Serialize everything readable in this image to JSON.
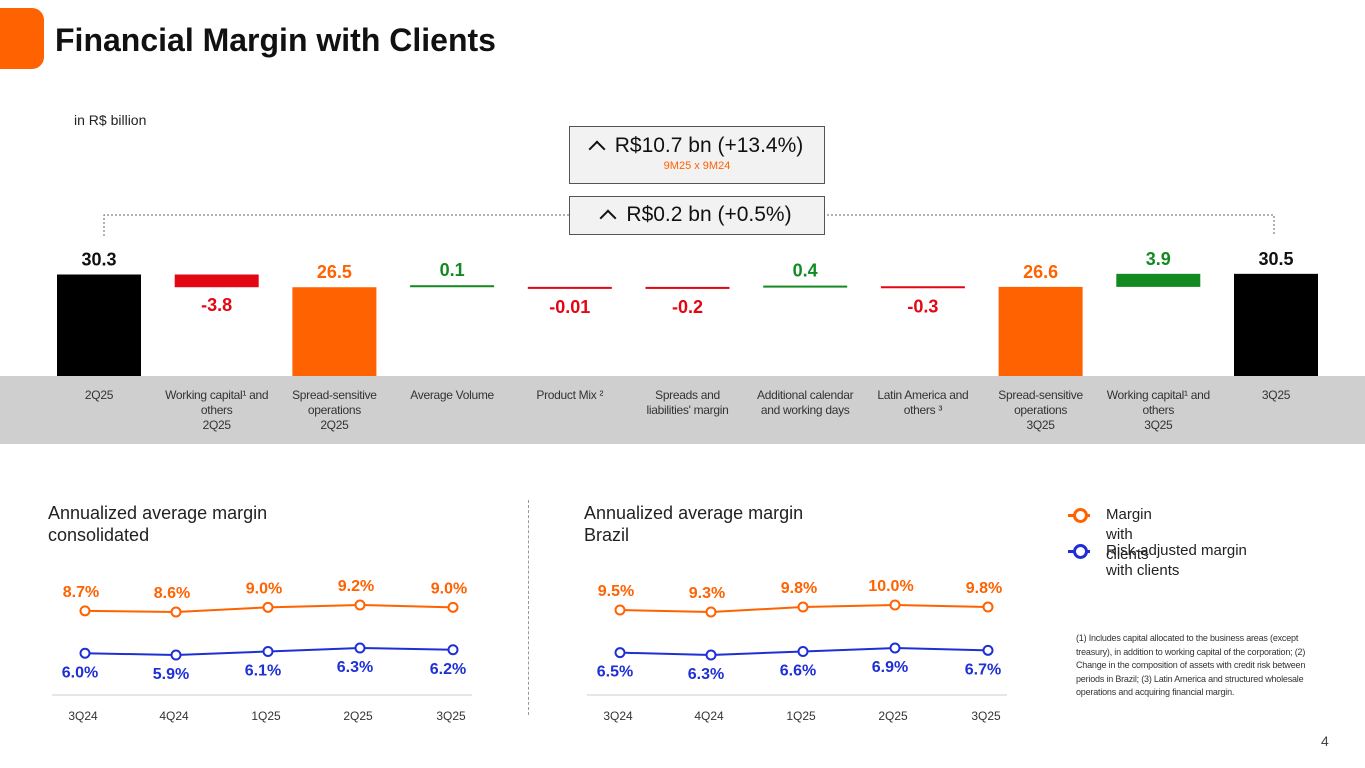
{
  "title": "Financial Margin with Clients",
  "unit_label": "in R$ billion",
  "highlight_ytd": {
    "main": "R$10.7 bn (+13.4%)",
    "sub": "9M25 x 9M24"
  },
  "highlight_qoq": {
    "main": "R$0.2 bn (+0.5%)"
  },
  "colors": {
    "orange": "#ff6200",
    "red": "#e30613",
    "green": "#138a21",
    "black": "#000000",
    "blue": "#1f2fd6",
    "band": "#cfcfcf"
  },
  "chart_data": [
    {
      "type": "bar",
      "subtype": "waterfall",
      "categories": [
        [
          "2Q25"
        ],
        [
          "Working capital¹ and",
          "others",
          "2Q25"
        ],
        [
          "Spread-sensitive",
          "operations",
          "2Q25"
        ],
        [
          "Average Volume"
        ],
        [
          "Product Mix ²"
        ],
        [
          "Spreads and",
          "liabilities' margin"
        ],
        [
          "Additional calendar",
          "and working days"
        ],
        [
          "Latin America and",
          "others ³"
        ],
        [
          "Spread-sensitive",
          "operations",
          "3Q25"
        ],
        [
          "Working capital¹ and",
          "others",
          "3Q25"
        ],
        [
          "3Q25"
        ]
      ],
      "values": [
        30.3,
        -3.8,
        26.5,
        0.1,
        -0.01,
        -0.2,
        0.4,
        -0.3,
        26.6,
        3.9,
        30.5
      ],
      "labels": [
        "30.3",
        "-3.8",
        "26.5",
        "0.1",
        "-0.01",
        "-0.2",
        "0.4",
        "-0.3",
        "26.6",
        "3.9",
        "30.5"
      ],
      "bar_kind": [
        "total",
        "negative",
        "subtotal",
        "positive",
        "negative",
        "negative",
        "positive",
        "negative",
        "subtotal",
        "positive",
        "total"
      ]
    },
    {
      "type": "line",
      "title": "Annualized average margin consolidated",
      "title_lines": [
        "Annualized average margin",
        "consolidated"
      ],
      "x": [
        "3Q24",
        "4Q24",
        "1Q25",
        "2Q25",
        "3Q25"
      ],
      "series": [
        {
          "name": "Margin with clients",
          "values": [
            8.7,
            8.6,
            9.0,
            9.2,
            9.0
          ],
          "labels": [
            "8.7%",
            "8.6%",
            "9.0%",
            "9.2%",
            "9.0%"
          ]
        },
        {
          "name": "Risk-adjusted margin with clients",
          "values": [
            6.0,
            5.9,
            6.1,
            6.3,
            6.2
          ],
          "labels": [
            "6.0%",
            "5.9%",
            "6.1%",
            "6.3%",
            "6.2%"
          ]
        }
      ]
    },
    {
      "type": "line",
      "title": "Annualized average margin Brazil",
      "title_lines": [
        "Annualized average margin",
        "Brazil"
      ],
      "x": [
        "3Q24",
        "4Q24",
        "1Q25",
        "2Q25",
        "3Q25"
      ],
      "series": [
        {
          "name": "Margin with clients",
          "values": [
            9.5,
            9.3,
            9.8,
            10.0,
            9.8
          ],
          "labels": [
            "9.5%",
            "9.3%",
            "9.8%",
            "10.0%",
            "9.8%"
          ]
        },
        {
          "name": "Risk-adjusted margin with clients",
          "values": [
            6.5,
            6.3,
            6.6,
            6.9,
            6.7
          ],
          "labels": [
            "6.5%",
            "6.3%",
            "6.6%",
            "6.9%",
            "6.7%"
          ]
        }
      ]
    }
  ],
  "legend": [
    {
      "label": "Margin with clients",
      "color": "#ff6200"
    },
    {
      "label": "Risk-adjusted margin with clients",
      "color": "#1f2fd6"
    }
  ],
  "footnote": "(1) Includes capital allocated to the business areas (except treasury), in addition to working capital of the corporation; (2) Change in the composition of assets with credit risk between periods in Brazil; (3) Latin America and structured wholesale operations and acquiring financial margin.",
  "page_number": "4"
}
